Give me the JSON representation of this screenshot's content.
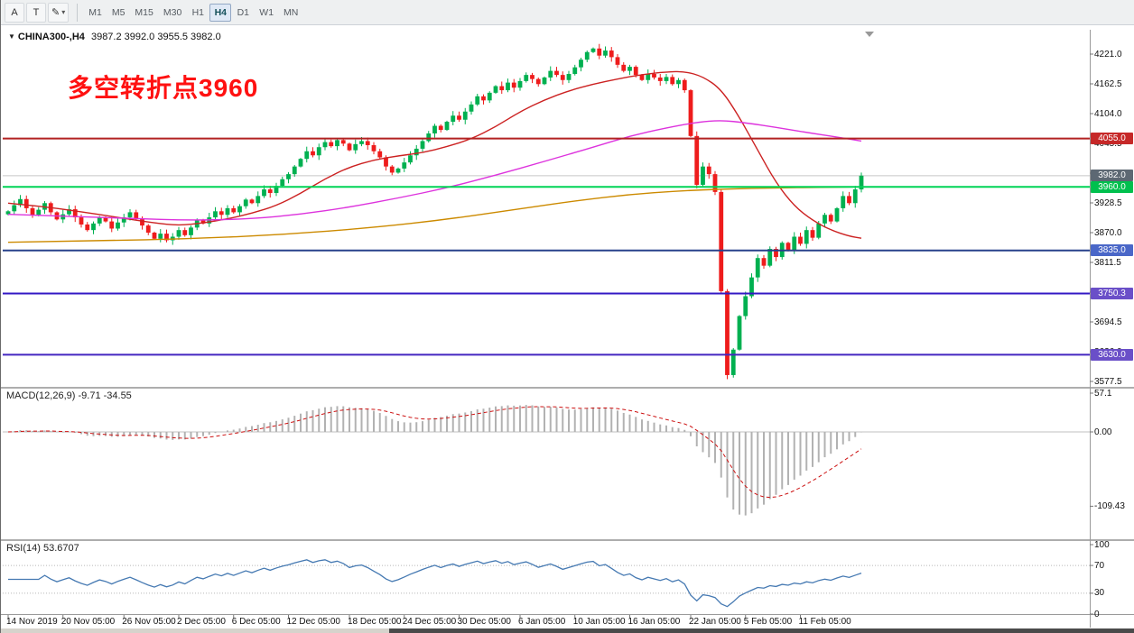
{
  "toolbar": {
    "left_buttons": [
      {
        "name": "pointer-tool",
        "label": "A"
      },
      {
        "name": "text-tool",
        "label": "T"
      },
      {
        "name": "draw-tools",
        "label": "✎",
        "caret": "▾"
      }
    ],
    "timeframes": [
      "M1",
      "M5",
      "M15",
      "M30",
      "H1",
      "H4",
      "D1",
      "W1",
      "MN"
    ],
    "active_timeframe": "H4"
  },
  "chart": {
    "dropdown_icon": "▼",
    "symbol_title": "CHINA300-,H4",
    "ohlc_text": "3987.2 3992.0 3955.5 3982.0",
    "annotation": {
      "text": "多空转折点3960",
      "color": "#ff1111"
    }
  },
  "chart_data": [
    {
      "type": "candlestick",
      "symbol": "CHINA300-",
      "timeframe": "H4",
      "current_ohlc": {
        "open": 3987.2,
        "high": 3992.0,
        "low": 3955.5,
        "close": 3982.0
      },
      "first_open": 3906,
      "up_color": "#00b050",
      "down_color": "#ee1c1c",
      "closes": [
        3912,
        3924,
        3936,
        3918,
        3905,
        3915,
        3928,
        3910,
        3896,
        3906,
        3916,
        3900,
        3886,
        3875,
        3888,
        3900,
        3892,
        3878,
        3890,
        3900,
        3910,
        3898,
        3884,
        3870,
        3858,
        3868,
        3855,
        3862,
        3875,
        3865,
        3880,
        3895,
        3888,
        3900,
        3912,
        3905,
        3918,
        3910,
        3922,
        3935,
        3928,
        3942,
        3955,
        3948,
        3962,
        3975,
        3985,
        4000,
        4015,
        4030,
        4022,
        4038,
        4048,
        4040,
        4052,
        4045,
        4032,
        4044,
        4050,
        4042,
        4030,
        4018,
        4000,
        3988,
        3996,
        4008,
        4022,
        4035,
        4050,
        4065,
        4080,
        4072,
        4088,
        4100,
        4092,
        4108,
        4122,
        4138,
        4130,
        4145,
        4158,
        4150,
        4165,
        4155,
        4168,
        4180,
        4172,
        4162,
        4175,
        4188,
        4180,
        4170,
        4182,
        4195,
        4210,
        4225,
        4232,
        4218,
        4228,
        4215,
        4200,
        4188,
        4196,
        4180,
        4170,
        4182,
        4175,
        4168,
        4176,
        4162,
        4170,
        4150,
        4060,
        3964,
        4000,
        3985,
        3950,
        3755,
        3590,
        3640,
        3706,
        3745,
        3782,
        3820,
        3805,
        3838,
        3822,
        3850,
        3835,
        3862,
        3848,
        3875,
        3860,
        3888,
        3905,
        3892,
        3918,
        3942,
        3928,
        3955,
        3982
      ],
      "y_ticks": [
        "4221.0",
        "4162.5",
        "4104.0",
        "4045.5",
        "3987.0",
        "3928.5",
        "3870.0",
        "3811.5",
        "3753.0",
        "3694.5",
        "3636.0",
        "3577.5"
      ],
      "x_labels": [
        {
          "text": "14 Nov 2019",
          "bar": 0
        },
        {
          "text": "20 Nov 05:00",
          "bar": 9
        },
        {
          "text": "26 Nov 05:00",
          "bar": 19
        },
        {
          "text": "2 Dec 05:00",
          "bar": 28
        },
        {
          "text": "6 Dec 05:00",
          "bar": 37
        },
        {
          "text": "12 Dec 05:00",
          "bar": 46
        },
        {
          "text": "18 Dec 05:00",
          "bar": 56
        },
        {
          "text": "24 Dec 05:00",
          "bar": 65
        },
        {
          "text": "30 Dec 05:00",
          "bar": 74
        },
        {
          "text": "6 Jan 05:00",
          "bar": 84
        },
        {
          "text": "10 Jan 05:00",
          "bar": 93
        },
        {
          "text": "16 Jan 05:00",
          "bar": 102
        },
        {
          "text": "22 Jan 05:00",
          "bar": 112
        },
        {
          "text": "5 Feb 05:00",
          "bar": 121
        },
        {
          "text": "11 Feb 05:00",
          "bar": 130
        }
      ],
      "hlines": [
        {
          "price": 4055.0,
          "label": "4055.0",
          "line_color": "#b22222",
          "tag_color": "#c62828",
          "width": 2
        },
        {
          "price": 3982.0,
          "label": "3982.0",
          "line_color": "#c8c8c8",
          "tag_color": "#5d6873",
          "width": 1,
          "current": true
        },
        {
          "price": 3960.0,
          "label": "3960.0",
          "line_color": "#00d455",
          "tag_color": "#00c04e",
          "width": 2
        },
        {
          "price": 3835.0,
          "label": "3835.0",
          "line_color": "#27408b",
          "tag_color": "#4a67c8",
          "width": 2
        },
        {
          "price": 3750.3,
          "label": "3750.3",
          "line_color": "#3318c4",
          "tag_color": "#6a4fc8",
          "width": 2
        },
        {
          "price": 3630.0,
          "label": "3630.0",
          "line_color": "#4326c0",
          "tag_color": "#6a4fc8",
          "width": 2
        }
      ],
      "moving_averages": [
        {
          "name": "ma-fast",
          "color": "#cc2222",
          "anchors": [
            [
              0,
              3928
            ],
            [
              6,
              3921
            ],
            [
              12,
              3911
            ],
            [
              18,
              3900
            ],
            [
              24,
              3889
            ],
            [
              28,
              3884
            ],
            [
              32,
              3889
            ],
            [
              36,
              3897
            ],
            [
              40,
              3908
            ],
            [
              44,
              3923
            ],
            [
              48,
              3947
            ],
            [
              52,
              3976
            ],
            [
              56,
              3999
            ],
            [
              60,
              4013
            ],
            [
              64,
              4021
            ],
            [
              68,
              4027
            ],
            [
              72,
              4039
            ],
            [
              76,
              4054
            ],
            [
              80,
              4078
            ],
            [
              84,
              4108
            ],
            [
              88,
              4131
            ],
            [
              92,
              4149
            ],
            [
              96,
              4162
            ],
            [
              100,
              4172
            ],
            [
              104,
              4181
            ],
            [
              108,
              4186
            ],
            [
              111,
              4187
            ],
            [
              114,
              4177
            ],
            [
              117,
              4152
            ],
            [
              120,
              4097
            ],
            [
              123,
              4032
            ],
            [
              126,
              3968
            ],
            [
              129,
              3922
            ],
            [
              132,
              3894
            ],
            [
              135,
              3875
            ],
            [
              138,
              3863
            ],
            [
              140,
              3859
            ]
          ]
        },
        {
          "name": "ma-mid",
          "color": "#dd33dd",
          "anchors": [
            [
              0,
              3906
            ],
            [
              10,
              3902
            ],
            [
              20,
              3898
            ],
            [
              30,
              3894
            ],
            [
              40,
              3897
            ],
            [
              48,
              3906
            ],
            [
              56,
              3920
            ],
            [
              64,
              3938
            ],
            [
              72,
              3958
            ],
            [
              80,
              3983
            ],
            [
              88,
              4010
            ],
            [
              96,
              4038
            ],
            [
              102,
              4060
            ],
            [
              108,
              4076
            ],
            [
              113,
              4087
            ],
            [
              117,
              4091
            ],
            [
              121,
              4086
            ],
            [
              126,
              4077
            ],
            [
              131,
              4067
            ],
            [
              136,
              4058
            ],
            [
              140,
              4050
            ]
          ]
        },
        {
          "name": "ma-slow",
          "color": "#cc8a00",
          "anchors": [
            [
              0,
              3851
            ],
            [
              15,
              3854
            ],
            [
              30,
              3858
            ],
            [
              45,
              3866
            ],
            [
              60,
              3880
            ],
            [
              72,
              3896
            ],
            [
              84,
              3917
            ],
            [
              94,
              3934
            ],
            [
              102,
              3945
            ],
            [
              110,
              3952
            ],
            [
              118,
              3956
            ],
            [
              126,
              3958
            ],
            [
              133,
              3959
            ],
            [
              140,
              3960
            ]
          ]
        }
      ]
    },
    {
      "type": "macd",
      "title": "MACD(12,26,9)",
      "values": "-9.71 -34.55",
      "params": [
        12,
        26,
        9
      ],
      "y_ticks": [
        "57.1",
        "0.00",
        "-109.43"
      ],
      "histogram_color": "#b2b2b2",
      "signal_color": "#cc1111"
    },
    {
      "type": "rsi",
      "title": "RSI(14)",
      "value": "53.6707",
      "period": 14,
      "y_ticks": [
        "100",
        "70",
        "30",
        "0"
      ],
      "levels": [
        70,
        30
      ],
      "line_color": "#4579b2"
    }
  ]
}
